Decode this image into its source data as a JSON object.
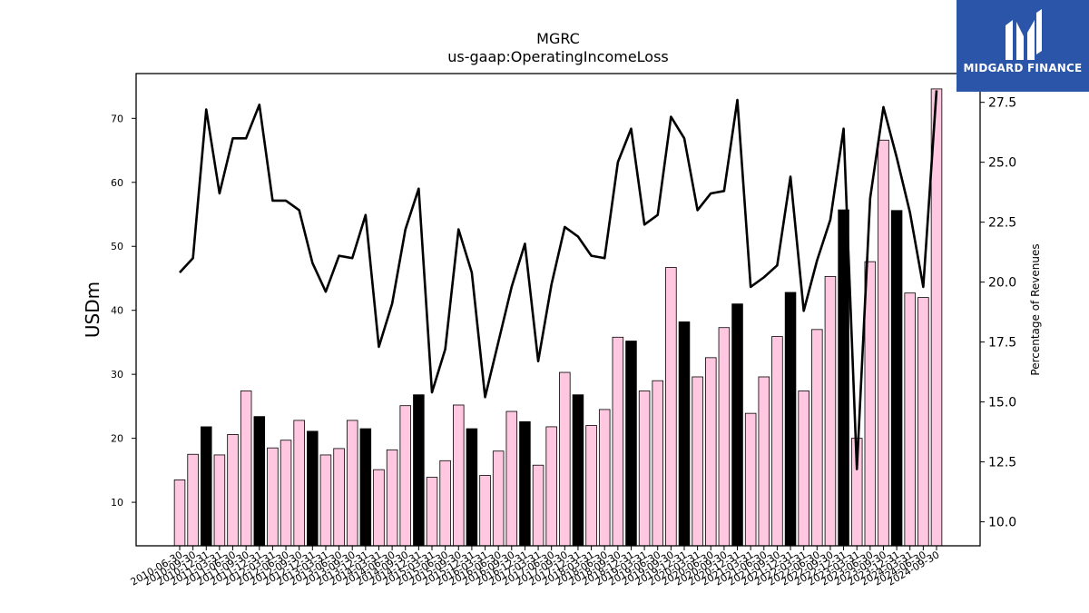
{
  "chart_data": {
    "type": "bar",
    "title": "MGRC",
    "subtitle": "us-gaap:OperatingIncomeLoss",
    "ylabel": "USDm",
    "y2label": "Percentage of Revenues",
    "ylim": [
      3.2,
      77.0
    ],
    "y2lim": [
      9.0,
      28.7
    ],
    "yticks": [
      10,
      20,
      30,
      40,
      50,
      60,
      70
    ],
    "y2ticks": [
      "10.0",
      "12.5",
      "15.0",
      "17.5",
      "20.0",
      "22.5",
      "25.0",
      "27.5"
    ],
    "categories": [
      "2010-06-30",
      "2010-09-30",
      "2010-12-31",
      "2011-03-31",
      "2011-06-30",
      "2011-09-30",
      "2011-12-31",
      "2012-03-31",
      "2012-06-30",
      "2012-09-30",
      "2012-12-31",
      "2013-03-31",
      "2013-06-30",
      "2013-09-30",
      "2013-12-31",
      "2014-03-31",
      "2014-06-30",
      "2014-09-30",
      "2014-12-31",
      "2015-03-31",
      "2015-06-30",
      "2015-09-30",
      "2015-12-31",
      "2016-03-31",
      "2016-06-30",
      "2016-09-30",
      "2016-12-31",
      "2017-03-31",
      "2017-06-30",
      "2017-09-30",
      "2017-12-31",
      "2018-03-31",
      "2018-06-30",
      "2018-09-30",
      "2018-12-31",
      "2019-03-31",
      "2019-06-30",
      "2019-09-30",
      "2019-12-31",
      "2020-03-31",
      "2020-06-30",
      "2020-09-30",
      "2020-12-31",
      "2021-03-31",
      "2021-06-30",
      "2021-09-30",
      "2021-12-31",
      "2022-03-31",
      "2022-06-30",
      "2022-09-30",
      "2022-12-31",
      "2023-03-31",
      "2023-06-30",
      "2023-09-30",
      "2023-12-31",
      "2024-03-31",
      "2024-06-30",
      "2024-09-30"
    ],
    "xtick_labels": [
      "2010-06-30",
      "2010-09-30",
      "2010-12-31",
      "2011-03-31",
      "2011-06-30",
      "2011-09-30",
      "2011-12-31",
      "2012-03-31",
      "2012-06-30",
      "2012-09-30",
      "2012-12-31",
      "2013-03-31",
      "2013-06-30",
      "2013-09-30",
      "2013-12-31",
      "2014-03-31",
      "2014-06-30",
      "2014-09-30",
      "2014-12-31",
      "2015-03-31",
      "2015-06-30",
      "2015-09-30",
      "2015-12-31",
      "2016-03-31",
      "2016-06-30",
      "2016-09-30",
      "2016-12-31",
      "2017-03-31",
      "2017-06-30",
      "2017-09-30",
      "2017-12-31",
      "2018-03-31",
      "2018-06-30",
      "2018-09-30",
      "2018-12-31",
      "2019-03-31",
      "2019-06-30",
      "2019-09-30",
      "2019-12-31",
      "2020-03-31",
      "2020-06-30",
      "2020-09-30",
      "2020-12-31",
      "2021-03-31",
      "2021-06-30",
      "2021-09-30",
      "2021-12-31",
      "2022-03-31",
      "2022-06-30",
      "2022-09-30",
      "2022-12-31",
      "2023-03-31",
      "2023-06-30",
      "2023-09-30",
      "2023-12-31",
      "2024-03-31",
      "2024-06-30",
      "2024-09-30"
    ],
    "bar_values": [
      13.5,
      17.5,
      21.8,
      17.4,
      20.6,
      27.4,
      23.4,
      18.5,
      19.7,
      22.8,
      21.1,
      17.4,
      18.4,
      22.8,
      21.5,
      15.1,
      18.2,
      25.1,
      26.8,
      13.9,
      16.5,
      25.2,
      21.5,
      14.2,
      18.0,
      24.2,
      22.6,
      15.8,
      21.8,
      30.3,
      26.8,
      22.0,
      24.5,
      35.8,
      35.2,
      27.4,
      29.0,
      46.7,
      38.2,
      29.6,
      32.6,
      37.3,
      41.0,
      23.9,
      29.6,
      35.9,
      42.8,
      27.4,
      37.0,
      45.3,
      55.7,
      20.0,
      47.6,
      66.6,
      55.6,
      42.7,
      42.0,
      74.6
    ],
    "bar_highlight": [
      false,
      false,
      true,
      false,
      false,
      false,
      true,
      false,
      false,
      false,
      true,
      false,
      false,
      false,
      true,
      false,
      false,
      false,
      true,
      false,
      false,
      false,
      true,
      false,
      false,
      false,
      true,
      false,
      false,
      false,
      true,
      false,
      false,
      false,
      true,
      false,
      false,
      false,
      true,
      false,
      false,
      false,
      true,
      false,
      false,
      false,
      true,
      false,
      false,
      false,
      true,
      false,
      false,
      false,
      true,
      false,
      false,
      false
    ],
    "line_values": [
      20.4,
      21.0,
      27.2,
      23.7,
      26.0,
      26.0,
      27.4,
      23.4,
      23.4,
      23.0,
      20.8,
      19.6,
      21.1,
      21.0,
      22.8,
      17.3,
      19.1,
      22.2,
      23.9,
      15.4,
      17.2,
      22.2,
      20.4,
      15.2,
      17.5,
      19.8,
      21.6,
      16.7,
      19.9,
      22.3,
      21.9,
      21.1,
      21.0,
      25.0,
      26.4,
      22.4,
      22.8,
      26.9,
      26.0,
      23.0,
      23.7,
      23.8,
      27.6,
      19.8,
      20.2,
      20.7,
      24.4,
      18.8,
      20.9,
      22.6,
      26.4,
      12.2,
      23.5,
      27.3,
      25.2,
      22.9,
      19.8,
      28.0
    ],
    "colors": {
      "bar_fill": "#ffc8e0",
      "bar_highlight_fill": "#000000",
      "bar_edge": "#000000",
      "line": "#000000"
    }
  },
  "logo": {
    "text": "MIDGARD FINANCE",
    "background": "#2b55a8"
  }
}
